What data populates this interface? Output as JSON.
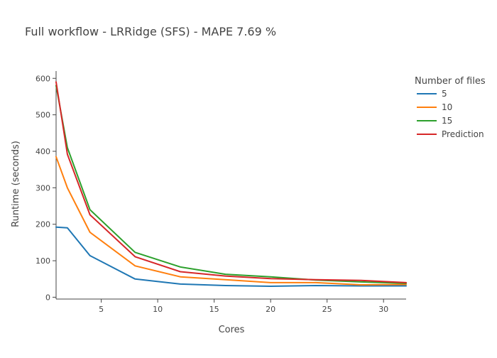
{
  "chart_data": {
    "type": "line",
    "title": "Full workflow - LRRidge (SFS) - MAPE 7.69 %",
    "xlabel": "Cores",
    "ylabel": "Runtime (seconds)",
    "xlim": [
      1,
      32
    ],
    "ylim": [
      -5,
      620
    ],
    "x_ticks": [
      5,
      10,
      15,
      20,
      25,
      30
    ],
    "y_ticks": [
      0,
      100,
      200,
      300,
      400,
      500,
      600
    ],
    "grid": false,
    "legend": {
      "title": "Number of files",
      "position": "right"
    },
    "series": [
      {
        "name": "5",
        "color": "#1f77b4",
        "x": [
          1,
          2,
          4,
          8,
          12,
          16,
          20,
          24,
          28,
          32
        ],
        "values": [
          192,
          190,
          114,
          50,
          36,
          32,
          30,
          32,
          31,
          31
        ]
      },
      {
        "name": "10",
        "color": "#ff7f0e",
        "x": [
          1,
          2,
          4,
          8,
          12,
          16,
          20,
          24,
          28,
          32
        ],
        "values": [
          385,
          300,
          178,
          86,
          56,
          48,
          40,
          40,
          34,
          35
        ]
      },
      {
        "name": "15",
        "color": "#2ca02c",
        "x": [
          1,
          2,
          4,
          8,
          12,
          16,
          20,
          24,
          28,
          32
        ],
        "values": [
          580,
          410,
          240,
          123,
          83,
          63,
          56,
          47,
          42,
          38
        ]
      },
      {
        "name": "Prediction",
        "color": "#d62728",
        "x": [
          1,
          2,
          4,
          8,
          12,
          16,
          20,
          24,
          28,
          32
        ],
        "values": [
          590,
          392,
          226,
          111,
          70,
          58,
          51,
          48,
          46,
          40
        ]
      }
    ]
  }
}
